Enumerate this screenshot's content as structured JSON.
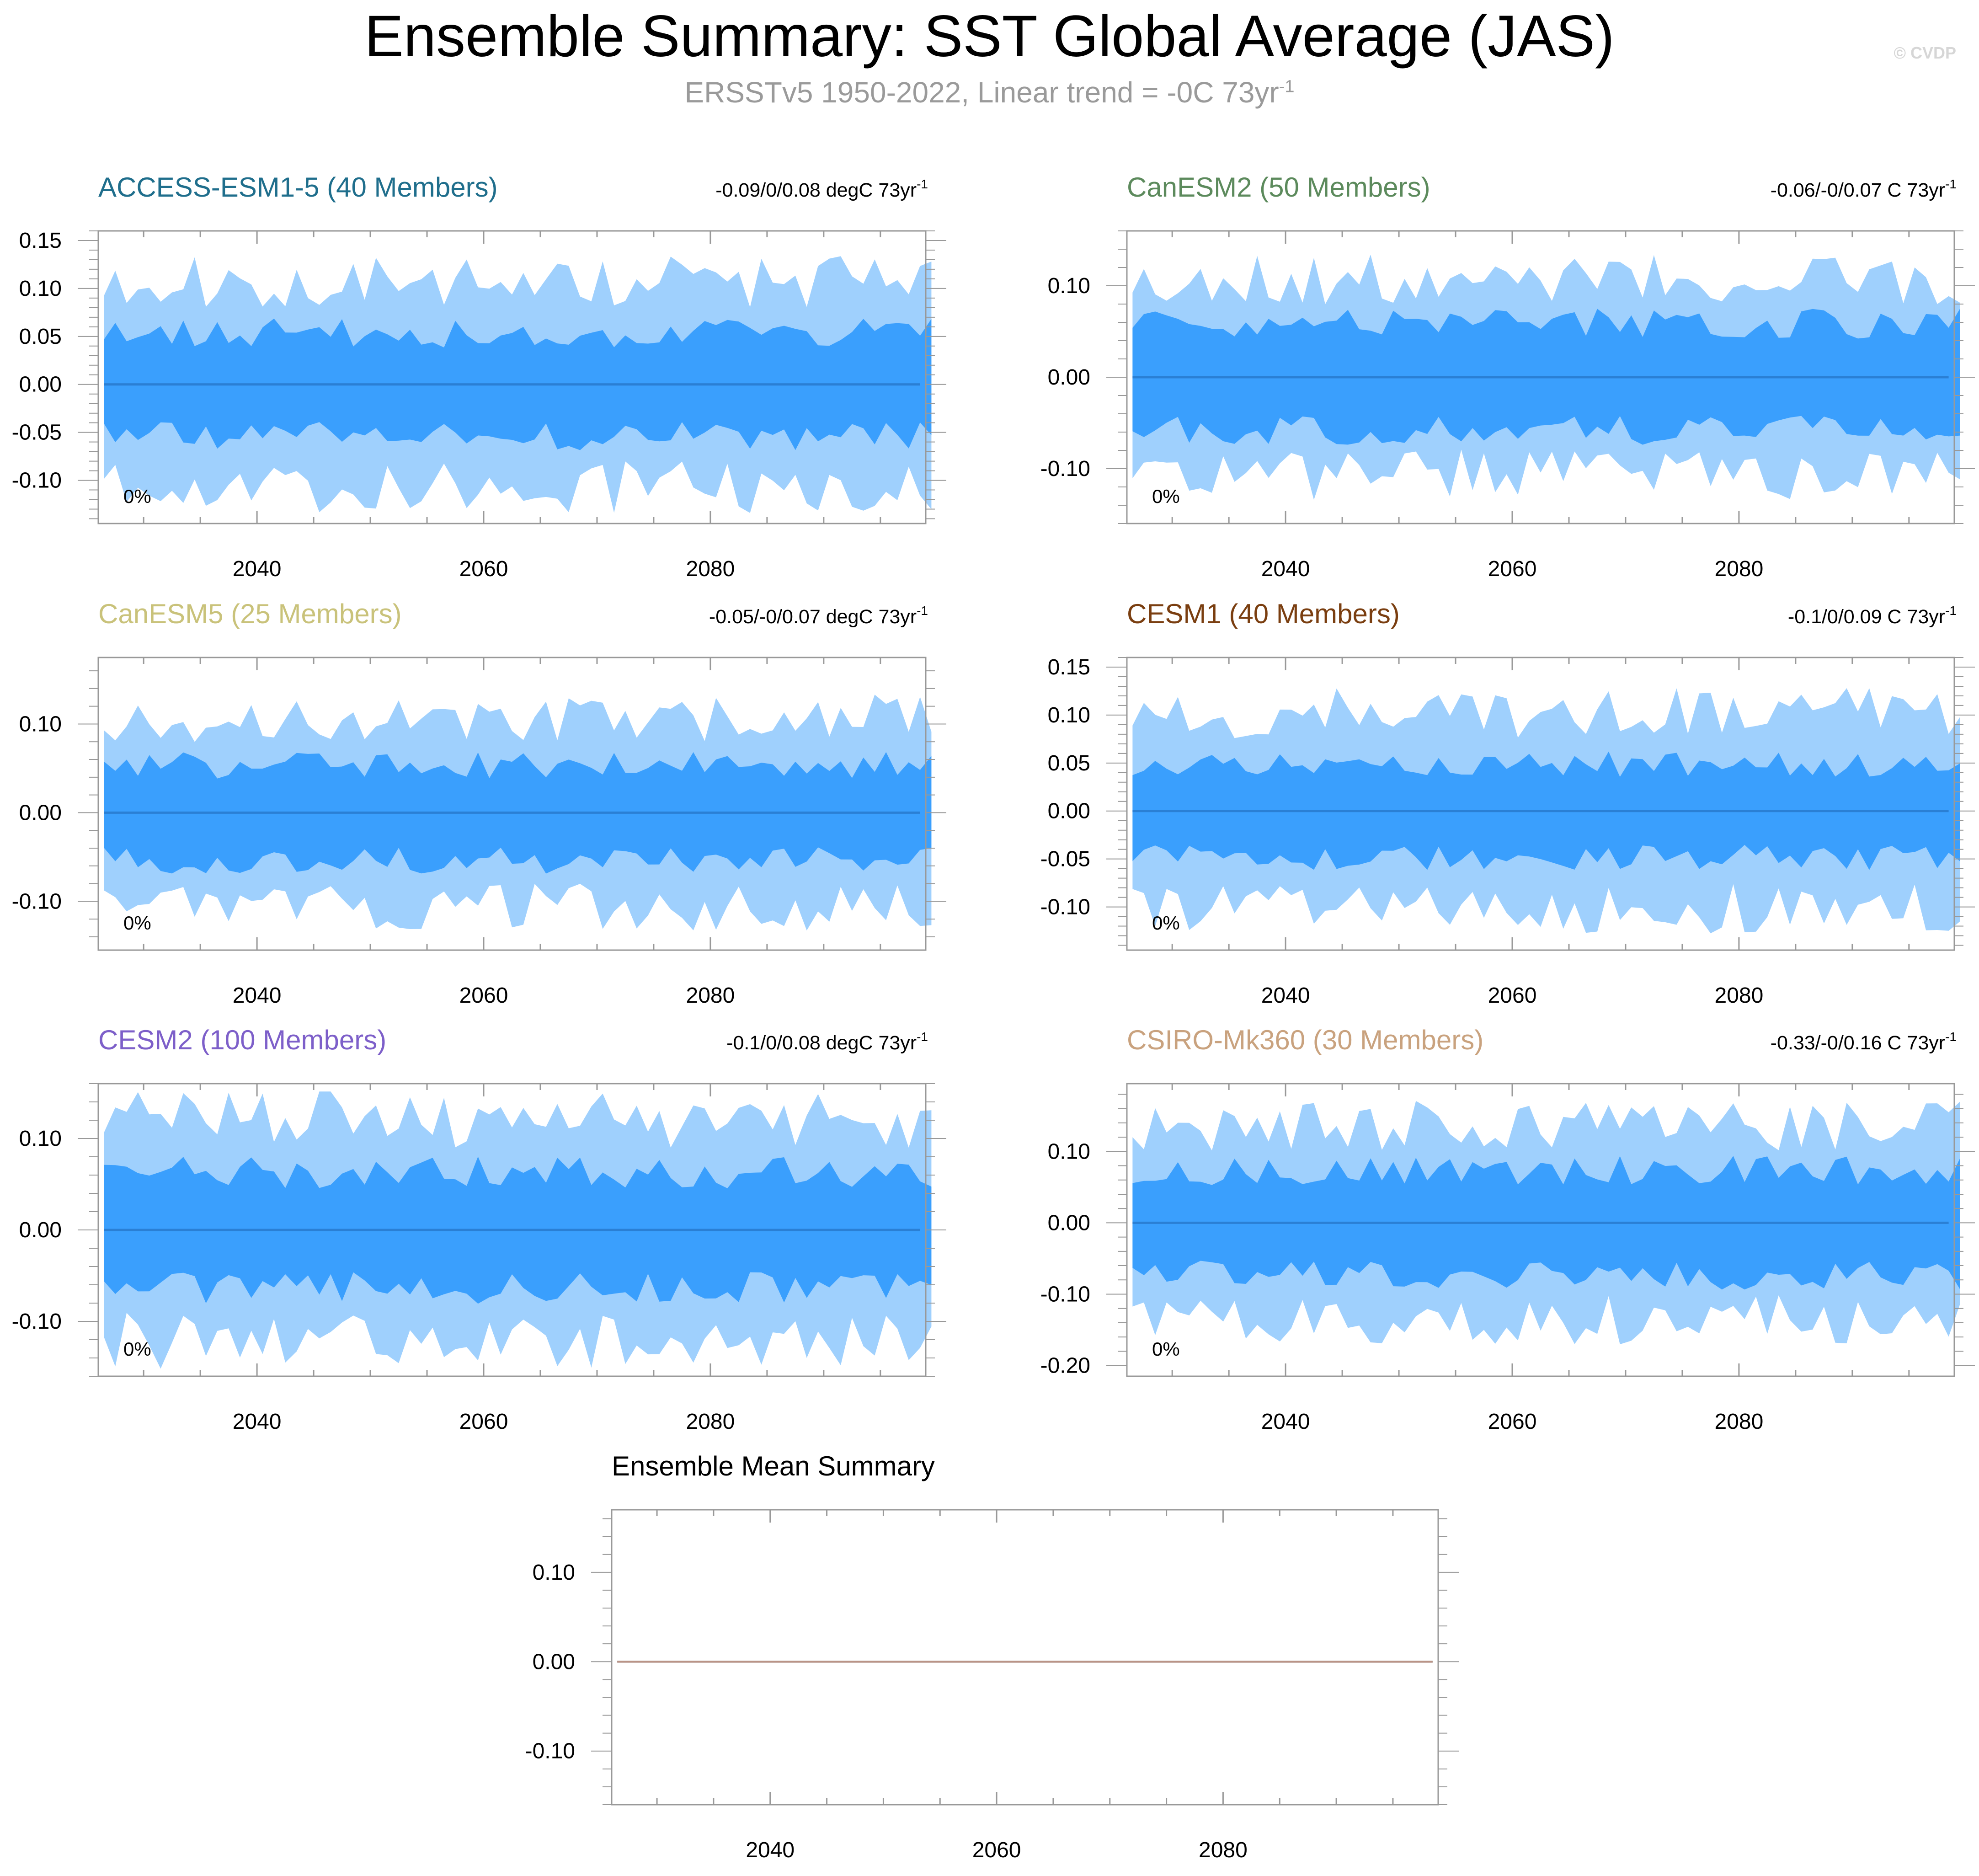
{
  "title": "Ensemble Summary: SST Global Average (JAS)",
  "subtitle": {
    "text": "ERSSTv5 1950-2022, Linear trend = -0C 73yr",
    "superscript": "-1"
  },
  "watermark": "© CVDP",
  "colors": {
    "outer_band": "#9fd0fd",
    "inner_band": "#3a9ffd",
    "mean_line": "#2a7fd4",
    "axis": "#999999",
    "tick_text": "#000000"
  },
  "chart_data": [
    {
      "type": "area",
      "model": "ACCESS-ESM1-5 (40 Members)",
      "title_color": "#1f6e8c",
      "stats": "-0.09/0/0.08 degC 73yr",
      "stats_sup": "-1",
      "percent_label": "0%",
      "xlim": [
        2026,
        2099
      ],
      "xticks": [
        2040,
        2060,
        2080
      ],
      "xtick_labels": [
        "2040",
        "2060",
        "2080"
      ],
      "ylim": [
        -0.145,
        0.16
      ],
      "yticks": [
        0.15,
        0.1,
        0.05,
        0.0,
        -0.05,
        -0.1
      ],
      "ytick_labels": [
        "0.15",
        "0.10",
        "0.05",
        "0.00",
        "-0.05",
        "-0.10"
      ],
      "outer_amplitude": 0.11,
      "inner_amplitude": 0.055,
      "seed": 11
    },
    {
      "type": "area",
      "model": "CanESM2 (50 Members)",
      "title_color": "#5c8a5c",
      "stats": "-0.06/-0/0.07 C 73yr",
      "stats_sup": "-1",
      "percent_label": "0%",
      "xlim": [
        2026,
        2099
      ],
      "xticks": [
        2040,
        2060,
        2080
      ],
      "xtick_labels": [
        "2040",
        "2060",
        "2080"
      ],
      "ylim": [
        -0.16,
        0.16
      ],
      "yticks": [
        0.1,
        0.0,
        -0.1
      ],
      "ytick_labels": [
        "0.10",
        "0.00",
        "-0.10"
      ],
      "outer_amplitude": 0.11,
      "inner_amplitude": 0.06,
      "seed": 23
    },
    {
      "type": "area",
      "model": "CanESM5 (25 Members)",
      "title_color": "#c9c27a",
      "stats": "-0.05/-0/0.07 degC 73yr",
      "stats_sup": "-1",
      "percent_label": "0%",
      "xlim": [
        2026,
        2099
      ],
      "xticks": [
        2040,
        2060,
        2080
      ],
      "xtick_labels": [
        "2040",
        "2060",
        "2080"
      ],
      "ylim": [
        -0.155,
        0.175
      ],
      "yticks": [
        0.1,
        0.0,
        -0.1
      ],
      "ytick_labels": [
        "0.10",
        "0.00",
        "-0.10"
      ],
      "outer_amplitude": 0.11,
      "inner_amplitude": 0.055,
      "seed": 37
    },
    {
      "type": "area",
      "model": "CESM1 (40 Members)",
      "title_color": "#7a3e10",
      "stats": "-0.1/0/0.09 C 73yr",
      "stats_sup": "-1",
      "percent_label": "0%",
      "xlim": [
        2026,
        2099
      ],
      "xticks": [
        2040,
        2060,
        2080
      ],
      "xtick_labels": [
        "2040",
        "2060",
        "2080"
      ],
      "ylim": [
        -0.145,
        0.16
      ],
      "yticks": [
        0.15,
        0.1,
        0.05,
        0.0,
        -0.05,
        -0.1
      ],
      "ytick_labels": [
        "0.15",
        "0.10",
        "0.05",
        "0.00",
        "-0.05",
        "-0.10"
      ],
      "outer_amplitude": 0.105,
      "inner_amplitude": 0.05,
      "seed": 53
    },
    {
      "type": "area",
      "model": "CESM2 (100 Members)",
      "title_color": "#7d5fc9",
      "stats": "-0.1/0/0.08 degC 73yr",
      "stats_sup": "-1",
      "percent_label": "0%",
      "xlim": [
        2026,
        2099
      ],
      "xticks": [
        2040,
        2060,
        2080
      ],
      "xtick_labels": [
        "2040",
        "2060",
        "2080"
      ],
      "ylim": [
        -0.16,
        0.16
      ],
      "yticks": [
        0.1,
        0.0,
        -0.1
      ],
      "ytick_labels": [
        "0.10",
        "0.00",
        "-0.10"
      ],
      "outer_amplitude": 0.125,
      "inner_amplitude": 0.065,
      "seed": 71
    },
    {
      "type": "area",
      "model": "CSIRO-Mk360 (30 Members)",
      "title_color": "#c9a27e",
      "stats": "-0.33/-0/0.16 C 73yr",
      "stats_sup": "-1",
      "percent_label": "0%",
      "xlim": [
        2026,
        2099
      ],
      "xticks": [
        2040,
        2060,
        2080
      ],
      "xtick_labels": [
        "2040",
        "2060",
        "2080"
      ],
      "ylim": [
        -0.215,
        0.195
      ],
      "yticks": [
        0.1,
        0.0,
        -0.1,
        -0.2
      ],
      "ytick_labels": [
        "0.10",
        "0.00",
        "-0.10",
        "-0.20"
      ],
      "outer_amplitude": 0.14,
      "inner_amplitude": 0.075,
      "seed": 97
    },
    {
      "type": "line",
      "model": "Ensemble Mean Summary",
      "title_color": "#000000",
      "xlim": [
        2026,
        2099
      ],
      "xticks": [
        2040,
        2060,
        2080
      ],
      "xtick_labels": [
        "2040",
        "2060",
        "2080"
      ],
      "ylim": [
        -0.16,
        0.17
      ],
      "yticks": [
        0.1,
        0.0,
        -0.1
      ],
      "ytick_labels": [
        "0.10",
        "0.00",
        "-0.10"
      ],
      "series": [
        {
          "name": "ACCESS-ESM1-5",
          "color": "#1f6e8c",
          "value": 0.0
        },
        {
          "name": "CanESM2",
          "color": "#5c8a5c",
          "value": 0.0
        },
        {
          "name": "CanESM5",
          "color": "#c9c27a",
          "value": 0.0
        },
        {
          "name": "CESM1",
          "color": "#7a3e10",
          "value": 0.0
        },
        {
          "name": "CESM2",
          "color": "#7d5fc9",
          "value": 0.0
        },
        {
          "name": "CSIRO-Mk360",
          "color": "#c9a27e",
          "value": 0.0
        }
      ]
    }
  ]
}
